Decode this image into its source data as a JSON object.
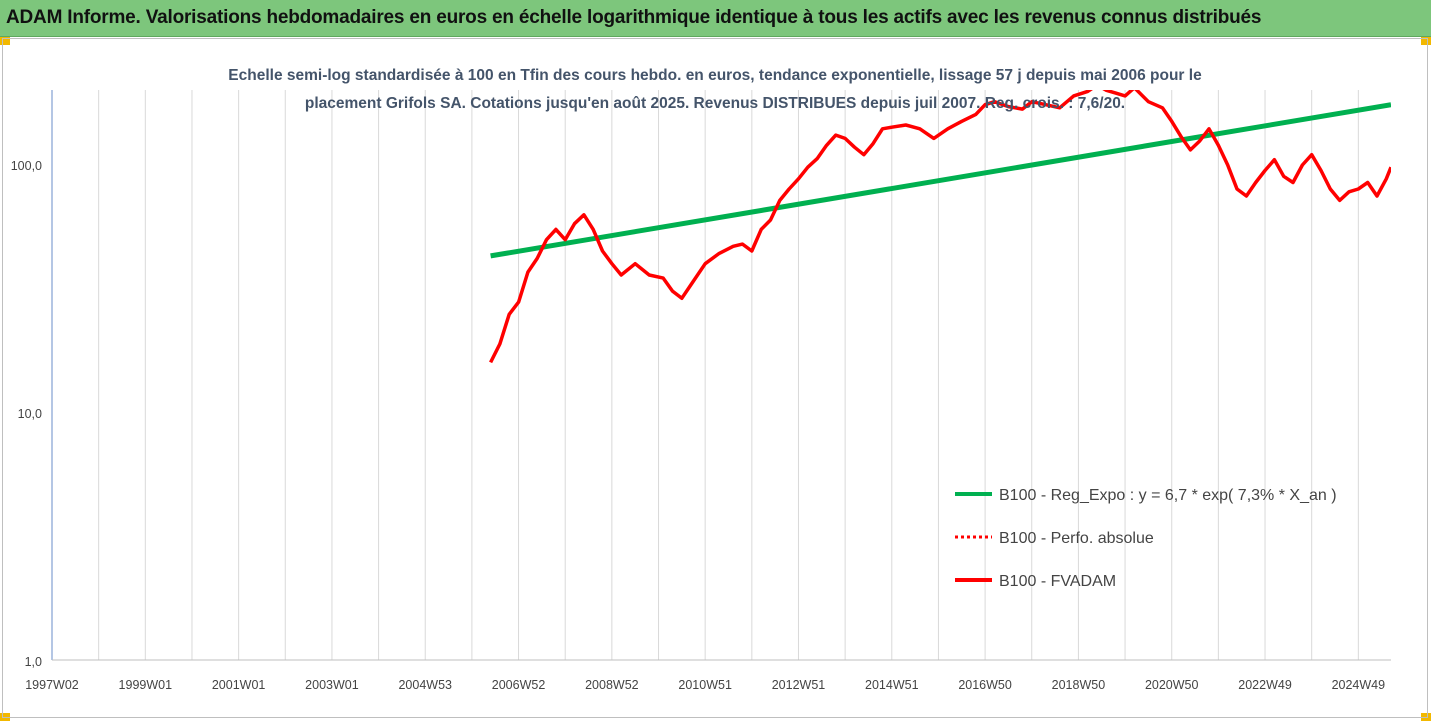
{
  "header": {
    "title": "ADAM Informe. Valorisations hebdomadaires en euros en échelle logarithmique identique à tous les actifs avec les revenus connus distribués"
  },
  "chart_data": {
    "type": "line",
    "subtitle_line1": "Echelle semi-log standardisée à 100 en Tfin des cours hebdo. en euros, tendance exponentielle, lissage 57 j depuis mai 2006 pour le",
    "subtitle_line2": "placement Grifols SA. Cotations jusqu'en août 2025. Revenus DISTRIBUES depuis juil 2007. Reg. crois. : 7,6/20.",
    "y_scale": "log",
    "ylim": [
      1,
      200
    ],
    "y_ticks": [
      {
        "value": 1,
        "label": "1,0"
      },
      {
        "value": 10,
        "label": "10,0"
      },
      {
        "value": 100,
        "label": "100,0"
      }
    ],
    "xlim": [
      1997.0,
      2025.7
    ],
    "x_ticks": [
      {
        "value": 1997.0,
        "label": "1997W02"
      },
      {
        "value": 1999.0,
        "label": "1999W01"
      },
      {
        "value": 2001.0,
        "label": "2001W01"
      },
      {
        "value": 2003.0,
        "label": "2003W01"
      },
      {
        "value": 2005.0,
        "label": "2004W53"
      },
      {
        "value": 2007.0,
        "label": "2006W52"
      },
      {
        "value": 2009.0,
        "label": "2008W52"
      },
      {
        "value": 2011.0,
        "label": "2010W51"
      },
      {
        "value": 2013.0,
        "label": "2012W51"
      },
      {
        "value": 2015.0,
        "label": "2014W51"
      },
      {
        "value": 2017.0,
        "label": "2016W50"
      },
      {
        "value": 2019.0,
        "label": "2018W50"
      },
      {
        "value": 2021.0,
        "label": "2020W50"
      },
      {
        "value": 2023.0,
        "label": "2022W49"
      },
      {
        "value": 2025.0,
        "label": "2024W49"
      }
    ],
    "grid": "vertical",
    "legend_position": "bottom-right",
    "series": [
      {
        "name": "B100 - Reg_Expo : y = 6,7 * exp( 7,3% *  X_an )",
        "color": "#00b050",
        "style": "solid",
        "x": [
          2006.4,
          2025.7
        ],
        "y": [
          43,
          175
        ]
      },
      {
        "name": "B100 - Perfo. absolue",
        "color": "#ff0000",
        "style": "dotted",
        "x": [],
        "y": []
      },
      {
        "name": "B100 - FVADAM",
        "color": "#ff0000",
        "style": "solid",
        "x": [
          2006.4,
          2006.6,
          2006.8,
          2007.0,
          2007.2,
          2007.4,
          2007.6,
          2007.8,
          2008.0,
          2008.2,
          2008.4,
          2008.6,
          2008.8,
          2009.0,
          2009.2,
          2009.5,
          2009.8,
          2010.1,
          2010.3,
          2010.5,
          2010.7,
          2011.0,
          2011.3,
          2011.6,
          2011.8,
          2012.0,
          2012.2,
          2012.4,
          2012.6,
          2012.8,
          2013.0,
          2013.2,
          2013.4,
          2013.6,
          2013.8,
          2014.0,
          2014.2,
          2014.4,
          2014.6,
          2014.8,
          2015.0,
          2015.3,
          2015.6,
          2015.9,
          2016.2,
          2016.5,
          2016.8,
          2017.0,
          2017.2,
          2017.5,
          2017.8,
          2018.0,
          2018.3,
          2018.6,
          2018.9,
          2019.2,
          2019.4,
          2019.6,
          2019.8,
          2020.0,
          2020.2,
          2020.5,
          2020.8,
          2021.0,
          2021.2,
          2021.4,
          2021.6,
          2021.8,
          2022.0,
          2022.2,
          2022.4,
          2022.6,
          2022.8,
          2023.0,
          2023.2,
          2023.4,
          2023.6,
          2023.8,
          2024.0,
          2024.2,
          2024.4,
          2024.6,
          2024.8,
          2025.0,
          2025.2,
          2025.4,
          2025.6,
          2025.7
        ],
        "y": [
          16,
          19,
          25,
          28,
          37,
          42,
          50,
          55,
          50,
          58,
          63,
          55,
          45,
          40,
          36,
          40,
          36,
          35,
          31,
          29,
          33,
          40,
          44,
          47,
          48,
          45,
          55,
          60,
          72,
          80,
          88,
          98,
          106,
          120,
          132,
          128,
          118,
          110,
          122,
          140,
          142,
          145,
          140,
          128,
          140,
          150,
          160,
          175,
          180,
          172,
          168,
          180,
          175,
          170,
          190,
          198,
          210,
          200,
          195,
          190,
          205,
          180,
          170,
          150,
          130,
          115,
          125,
          140,
          120,
          100,
          80,
          75,
          85,
          95,
          105,
          90,
          85,
          100,
          110,
          95,
          80,
          72,
          78,
          80,
          85,
          75,
          88,
          98
        ]
      }
    ]
  }
}
